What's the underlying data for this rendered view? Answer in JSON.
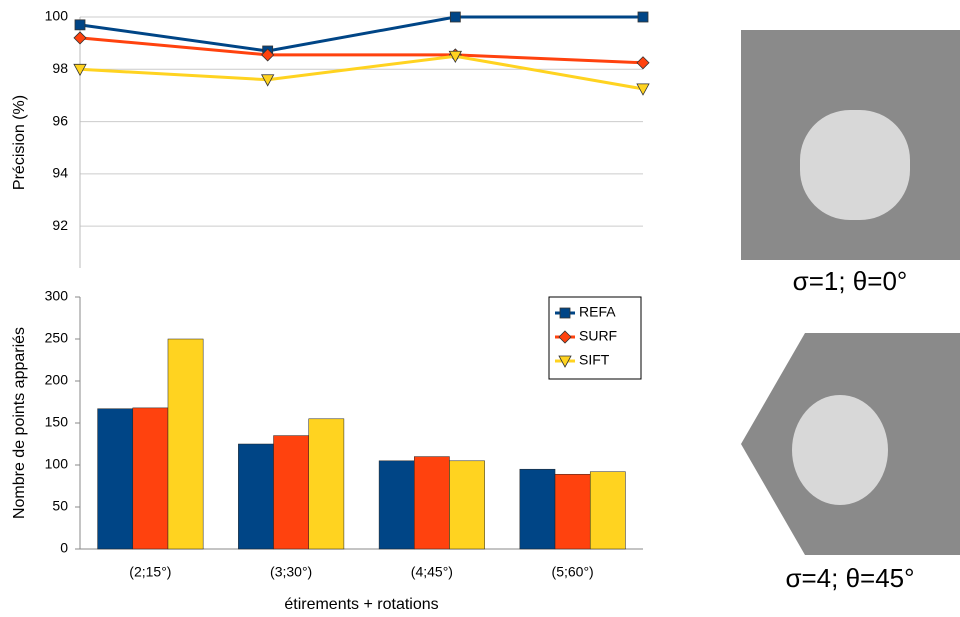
{
  "chart_data": [
    {
      "type": "line",
      "y_label": "Précision (%)",
      "categories": [
        "(2;15°)",
        "(3;30°)",
        "(4;45°)",
        "(5;60°)"
      ],
      "series": [
        {
          "name": "REFA",
          "color": "#004586",
          "marker": "square",
          "values": [
            99.7,
            98.7,
            100,
            100
          ]
        },
        {
          "name": "SURF",
          "color": "#ff420e",
          "marker": "diamond",
          "values": [
            99.2,
            98.55,
            98.55,
            98.25
          ]
        },
        {
          "name": "SIFT",
          "color": "#ffd320",
          "marker": "triangle-down",
          "values": [
            98.0,
            97.6,
            98.5,
            97.25
          ]
        }
      ],
      "ylim": [
        90.4,
        100
      ],
      "yticks": [
        92,
        94,
        96,
        98,
        100
      ],
      "grid": true
    },
    {
      "type": "bar",
      "x_label": "étirements + rotations",
      "y_label": "Nombre de points appariés",
      "categories": [
        "(2;15°)",
        "(3;30°)",
        "(4;45°)",
        "(5;60°)"
      ],
      "series": [
        {
          "name": "REFA",
          "color": "#004586",
          "marker": "square",
          "values": [
            167,
            125,
            105,
            95
          ]
        },
        {
          "name": "SURF",
          "color": "#ff420e",
          "marker": "diamond",
          "values": [
            168,
            135,
            110,
            89
          ]
        },
        {
          "name": "SIFT",
          "color": "#ffd320",
          "marker": "triangle-down",
          "values": [
            250,
            155,
            105,
            92
          ]
        }
      ],
      "ylim": [
        0,
        300
      ],
      "yticks": [
        0,
        50,
        100,
        150,
        200,
        250,
        300
      ],
      "grid": false,
      "legend": "upper right"
    }
  ],
  "images": [
    {
      "caption": "σ=1; θ=0°"
    },
    {
      "caption": "σ=4; θ=45°"
    }
  ]
}
